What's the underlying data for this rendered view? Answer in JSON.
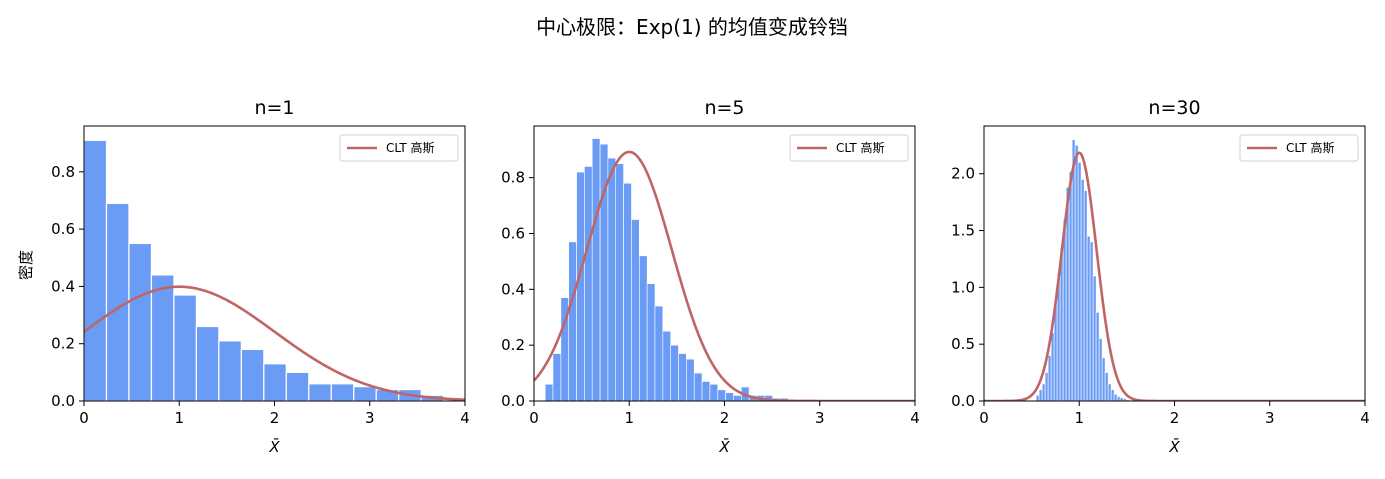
{
  "figure": {
    "suptitle": "中心极限：Exp(1) 的均值变成铃铛"
  },
  "colors": {
    "bar": "#6b9cf5",
    "curve": "#c06565"
  },
  "chart_data": [
    {
      "type": "bar",
      "title": "n=1",
      "xlabel": "X̄",
      "ylabel": "密度",
      "xlim": [
        0,
        4
      ],
      "ylim": [
        0,
        0.96
      ],
      "xticks": [
        "0",
        "1",
        "2",
        "3",
        "4"
      ],
      "yticks": [
        "0.0",
        "0.2",
        "0.4",
        "0.6",
        "0.8"
      ],
      "ytick_values": [
        0,
        0.2,
        0.4,
        0.6,
        0.8
      ],
      "grid": false,
      "legend": {
        "position": "top-right",
        "label": "CLT 高斯"
      },
      "bin_width": 0.236,
      "bin_starts": [
        0,
        0.236,
        0.472,
        0.708,
        0.944,
        1.18,
        1.416,
        1.652,
        1.888,
        2.124,
        2.36,
        2.596,
        2.832,
        3.068,
        3.304,
        3.54
      ],
      "values": [
        0.91,
        0.69,
        0.55,
        0.44,
        0.37,
        0.26,
        0.21,
        0.18,
        0.13,
        0.1,
        0.06,
        0.06,
        0.05,
        0.04,
        0.04,
        0.02
      ],
      "curve": {
        "name": "CLT 高斯",
        "mean": 1,
        "sd": 1
      }
    },
    {
      "type": "bar",
      "title": "n=5",
      "xlabel": "X̄",
      "ylabel": "",
      "xlim": [
        0,
        4
      ],
      "ylim": [
        0,
        0.985
      ],
      "xticks": [
        "0",
        "1",
        "2",
        "3",
        "4"
      ],
      "yticks": [
        "0.0",
        "0.2",
        "0.4",
        "0.6",
        "0.8"
      ],
      "ytick_values": [
        0,
        0.2,
        0.4,
        0.6,
        0.8
      ],
      "grid": false,
      "legend": {
        "position": "top-right",
        "label": "CLT 高斯"
      },
      "bin_width": 0.0824,
      "bin_starts": [
        0.117,
        0.199,
        0.282,
        0.364,
        0.447,
        0.529,
        0.611,
        0.694,
        0.776,
        0.858,
        0.941,
        1.023,
        1.106,
        1.188,
        1.27,
        1.353,
        1.435,
        1.517,
        1.6,
        1.682,
        1.764,
        1.847,
        1.929,
        2.012,
        2.094,
        2.176,
        2.259,
        2.341,
        2.423,
        2.506,
        2.588
      ],
      "values": [
        0.06,
        0.17,
        0.37,
        0.57,
        0.82,
        0.84,
        0.94,
        0.92,
        0.87,
        0.85,
        0.78,
        0.65,
        0.52,
        0.42,
        0.34,
        0.25,
        0.2,
        0.17,
        0.15,
        0.1,
        0.07,
        0.06,
        0.04,
        0.03,
        0.02,
        0.05,
        0.02,
        0.02,
        0.02,
        0.01,
        0.01
      ],
      "curve": {
        "name": "CLT 高斯",
        "mean": 1,
        "sd": 0.4472
      }
    },
    {
      "type": "bar",
      "title": "n=30",
      "xlabel": "X̄",
      "ylabel": "",
      "xlim": [
        0,
        4
      ],
      "ylim": [
        0,
        2.42
      ],
      "xticks": [
        "0",
        "1",
        "2",
        "3",
        "4"
      ],
      "yticks": [
        "0.0",
        "0.5",
        "1.0",
        "1.5",
        "2.0"
      ],
      "ytick_values": [
        0,
        0.5,
        1.0,
        1.5,
        2.0
      ],
      "grid": false,
      "legend": {
        "position": "top-right",
        "label": "CLT 高斯"
      },
      "bin_width": 0.0315,
      "bin_starts": [
        0.547,
        0.579,
        0.61,
        0.642,
        0.673,
        0.705,
        0.736,
        0.768,
        0.799,
        0.831,
        0.862,
        0.894,
        0.925,
        0.957,
        0.988,
        1.02,
        1.051,
        1.083,
        1.114,
        1.146,
        1.177,
        1.209,
        1.24,
        1.272,
        1.303,
        1.335,
        1.366,
        1.398,
        1.429,
        1.461,
        1.492
      ],
      "values": [
        0.05,
        0.1,
        0.15,
        0.25,
        0.4,
        0.6,
        0.85,
        1.12,
        1.35,
        1.6,
        1.88,
        2.02,
        2.3,
        2.25,
        2.1,
        1.95,
        1.85,
        1.45,
        1.4,
        1.1,
        0.78,
        0.55,
        0.38,
        0.25,
        0.15,
        0.1,
        0.06,
        0.04,
        0.03,
        0.02,
        0.01
      ],
      "curve": {
        "name": "CLT 高斯",
        "mean": 1,
        "sd": 0.1826
      }
    }
  ]
}
